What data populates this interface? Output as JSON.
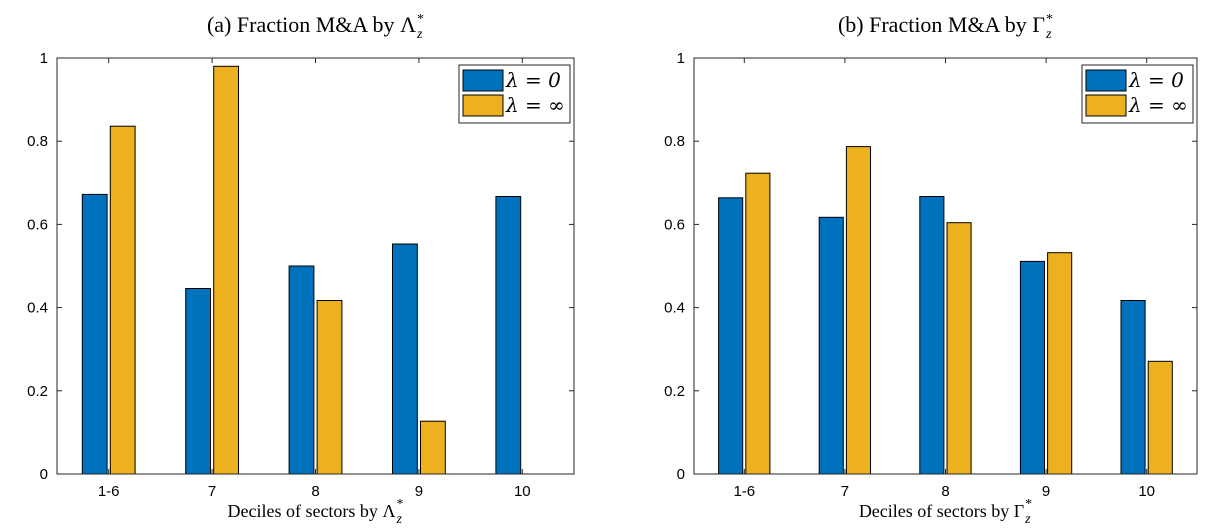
{
  "chart_data": [
    {
      "type": "bar",
      "title": {
        "prefix": "(a) Fraction M&A by ",
        "symbol": "Λ",
        "sub": "z",
        "sup": "*"
      },
      "xlabel": {
        "prefix": "Deciles of sectors by ",
        "symbol": "Λ",
        "sub": "z",
        "sup": "*"
      },
      "ylabel": "",
      "ylim": [
        0,
        1
      ],
      "yticks": [
        "0",
        "0.2",
        "0.4",
        "0.6",
        "0.8",
        "1"
      ],
      "categories": [
        "1-6",
        "7",
        "8",
        "9",
        "10"
      ],
      "series": [
        {
          "name": "λ = 0",
          "color": "#0072BD",
          "values": [
            0.672,
            0.446,
            0.5,
            0.553,
            0.667
          ]
        },
        {
          "name": "λ = ∞",
          "color": "#EDB120",
          "values": [
            0.836,
            0.98,
            0.417,
            0.127,
            0.0
          ]
        }
      ],
      "legend_position": "top-right",
      "grid": false
    },
    {
      "type": "bar",
      "title": {
        "prefix": "(b) Fraction M&A by ",
        "symbol": "Γ",
        "sub": "z",
        "sup": "*"
      },
      "xlabel": {
        "prefix": "Deciles of sectors by ",
        "symbol": "Γ",
        "sub": "z",
        "sup": "*"
      },
      "ylabel": "",
      "ylim": [
        0,
        1
      ],
      "yticks": [
        "0",
        "0.2",
        "0.4",
        "0.6",
        "0.8",
        "1"
      ],
      "categories": [
        "1-6",
        "7",
        "8",
        "9",
        "10"
      ],
      "series": [
        {
          "name": "λ = 0",
          "color": "#0072BD",
          "values": [
            0.664,
            0.617,
            0.667,
            0.511,
            0.417
          ]
        },
        {
          "name": "λ = ∞",
          "color": "#EDB120",
          "values": [
            0.723,
            0.787,
            0.604,
            0.532,
            0.271
          ]
        }
      ],
      "legend_position": "top-right",
      "grid": false
    }
  ]
}
